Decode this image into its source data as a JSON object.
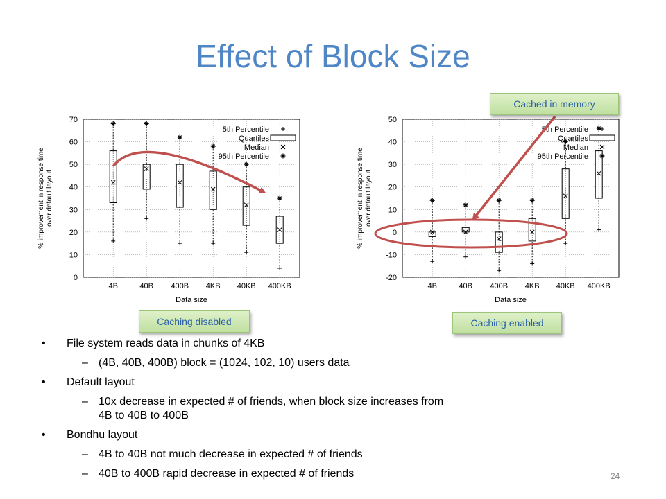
{
  "slide": {
    "title": "Effect of Block Size",
    "page_number": "24"
  },
  "callouts": {
    "caching_disabled": "Caching disabled",
    "caching_enabled": "Caching enabled",
    "cached_in_memory": "Cached in memory"
  },
  "bullets": [
    {
      "level": 1,
      "text": "File system reads data in chunks of 4KB"
    },
    {
      "level": 2,
      "text": "(4B, 40B, 400B) block = (1024, 102, 10) users data"
    },
    {
      "level": 1,
      "text": "Default layout"
    },
    {
      "level": 2,
      "text": "10x decrease in expected # of friends, when block size increases from 4B to 40B to 400B"
    },
    {
      "level": 1,
      "text": "Bondhu layout"
    },
    {
      "level": 2,
      "text": "4B to 40B not much decrease in expected # of friends"
    },
    {
      "level": 2,
      "text": "40B to 400B rapid decrease in expected # of friends"
    }
  ],
  "annotation_colors": {
    "arrow": "#c0504d",
    "ellipse": "#c0504d",
    "title": "#4f86c6"
  },
  "chart_data": [
    {
      "type": "box",
      "xlabel": "Data size",
      "ylabel": "% improvement in response time over default layout",
      "categories": [
        "4B",
        "40B",
        "400B",
        "4KB",
        "40KB",
        "400KB"
      ],
      "ylim": [
        0,
        70
      ],
      "yticks": [
        0,
        10,
        20,
        30,
        40,
        50,
        60,
        70
      ],
      "grid": true,
      "legend_position": "top-right",
      "legend": [
        "5th Percentile",
        "Quartiles",
        "Median",
        "95th Percentile"
      ],
      "series": [
        {
          "category": "4B",
          "p5": 16,
          "q1": 33,
          "median": 42,
          "q3": 56,
          "p95": 68
        },
        {
          "category": "40B",
          "p5": 26,
          "q1": 39,
          "median": 48,
          "q3": 50,
          "p95": 68
        },
        {
          "category": "400B",
          "p5": 15,
          "q1": 31,
          "median": 42,
          "q3": 50,
          "p95": 62
        },
        {
          "category": "4KB",
          "p5": 15,
          "q1": 30,
          "median": 39,
          "q3": 47,
          "p95": 58
        },
        {
          "category": "40KB",
          "p5": 11,
          "q1": 23,
          "median": 32,
          "q3": 40,
          "p95": 50
        },
        {
          "category": "400KB",
          "p5": 4,
          "q1": 15,
          "median": 21,
          "q3": 27,
          "p95": 35
        }
      ]
    },
    {
      "type": "box",
      "xlabel": "Data size",
      "ylabel": "% improvement in response time over default layout",
      "categories": [
        "4B",
        "40B",
        "400B",
        "4KB",
        "40KB",
        "400KB"
      ],
      "ylim": [
        -20,
        50
      ],
      "yticks": [
        -20,
        -10,
        0,
        10,
        20,
        30,
        40,
        50
      ],
      "grid": true,
      "legend_position": "top-right",
      "legend": [
        "5th Percentile",
        "Quartiles",
        "Median",
        "95th Percentile"
      ],
      "series": [
        {
          "category": "4B",
          "p5": -13,
          "q1": -2,
          "median": 0,
          "q3": 0,
          "p95": 14
        },
        {
          "category": "40B",
          "p5": -11,
          "q1": 0,
          "median": 0,
          "q3": 2,
          "p95": 12
        },
        {
          "category": "400B",
          "p5": -17,
          "q1": -9,
          "median": -3,
          "q3": 0,
          "p95": 14
        },
        {
          "category": "4KB",
          "p5": -14,
          "q1": -4,
          "median": 0,
          "q3": 6,
          "p95": 14
        },
        {
          "category": "40KB",
          "p5": -5,
          "q1": 6,
          "median": 16,
          "q3": 28,
          "p95": 40
        },
        {
          "category": "400KB",
          "p5": 1,
          "q1": 15,
          "median": 26,
          "q3": 36,
          "p95": 46
        }
      ]
    }
  ]
}
